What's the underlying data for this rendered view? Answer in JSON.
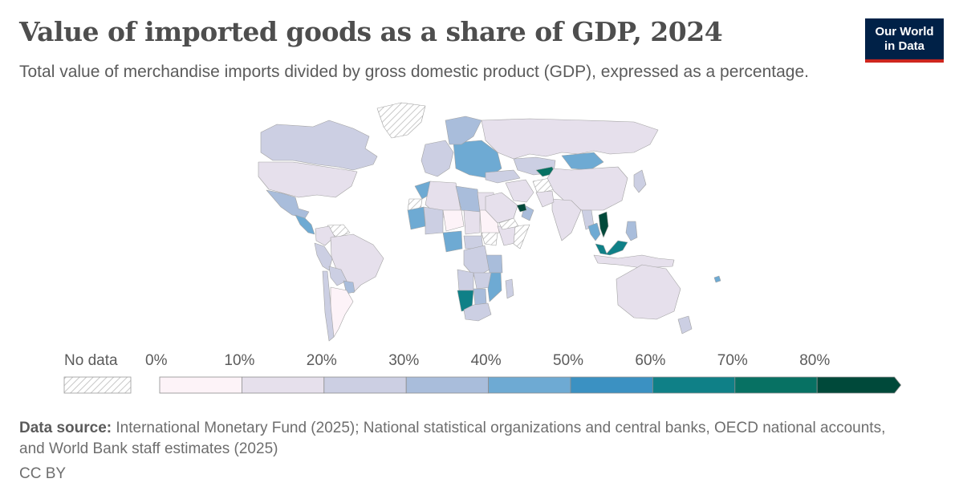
{
  "header": {
    "title": "Value of imported goods as a share of GDP, 2024",
    "subtitle": "Total value of merchandise imports divided by gross domestic product (GDP), expressed as a percentage."
  },
  "logo": {
    "line1": "Our World",
    "line2": "in Data"
  },
  "legend": {
    "no_data_label": "No data",
    "tick_labels": [
      "0%",
      "10%",
      "20%",
      "30%",
      "40%",
      "50%",
      "60%",
      "70%",
      "80%"
    ],
    "bins": [
      {
        "from": 0,
        "to": 10,
        "color": "#fdf3f8"
      },
      {
        "from": 10,
        "to": 20,
        "color": "#e6e0ec"
      },
      {
        "from": 20,
        "to": 30,
        "color": "#cccfe3"
      },
      {
        "from": 30,
        "to": 40,
        "color": "#a9bddb"
      },
      {
        "from": 40,
        "to": 50,
        "color": "#6eaad3"
      },
      {
        "from": 50,
        "to": 60,
        "color": "#3b91c2"
      },
      {
        "from": 60,
        "to": 70,
        "color": "#0f8087"
      },
      {
        "from": 70,
        "to": 80,
        "color": "#077163"
      },
      {
        "from": 80,
        "to": null,
        "color": "#00493a"
      }
    ]
  },
  "footer": {
    "source_label": "Data source:",
    "source_text": " International Monetary Fund (2025); National statistical organizations and central banks, OECD national accounts, and World Bank staff estimates (2025)",
    "license": "CC BY"
  },
  "chart_data": {
    "type": "choropleth",
    "title": "Value of imported goods as a share of GDP, 2024",
    "unit": "%",
    "year": 2024,
    "regions": [
      {
        "name": "Canada",
        "value": 25
      },
      {
        "name": "United States",
        "value": 12
      },
      {
        "name": "Greenland",
        "value": null
      },
      {
        "name": "Mexico",
        "value": 37
      },
      {
        "name": "Central America",
        "value": 45
      },
      {
        "name": "Venezuela",
        "value": null
      },
      {
        "name": "Colombia",
        "value": 18
      },
      {
        "name": "Brazil",
        "value": 14
      },
      {
        "name": "Peru",
        "value": 20
      },
      {
        "name": "Bolivia",
        "value": 22
      },
      {
        "name": "Paraguay",
        "value": 35
      },
      {
        "name": "Argentina",
        "value": 9
      },
      {
        "name": "Chile",
        "value": 22
      },
      {
        "name": "Western Sahara",
        "value": null
      },
      {
        "name": "Morocco",
        "value": 42
      },
      {
        "name": "Algeria",
        "value": 15
      },
      {
        "name": "Libya",
        "value": 31
      },
      {
        "name": "Egypt",
        "value": 18
      },
      {
        "name": "Mauritania",
        "value": 42
      },
      {
        "name": "Mali",
        "value": 22
      },
      {
        "name": "Niger",
        "value": 8
      },
      {
        "name": "Chad",
        "value": 12
      },
      {
        "name": "Sudan",
        "value": 8
      },
      {
        "name": "South Sudan",
        "value": null
      },
      {
        "name": "Ethiopia",
        "value": 12
      },
      {
        "name": "Somalia",
        "value": null
      },
      {
        "name": "Nigeria",
        "value": 45
      },
      {
        "name": "Central African Republic",
        "value": 22
      },
      {
        "name": "DR Congo",
        "value": 28
      },
      {
        "name": "Angola",
        "value": 22
      },
      {
        "name": "Tanzania",
        "value": 30
      },
      {
        "name": "Zambia",
        "value": 28
      },
      {
        "name": "Namibia",
        "value": 62
      },
      {
        "name": "Botswana",
        "value": 38
      },
      {
        "name": "South Africa",
        "value": 22
      },
      {
        "name": "Mozambique",
        "value": 48
      },
      {
        "name": "Madagascar",
        "value": 28
      },
      {
        "name": "Western Europe",
        "value": 28
      },
      {
        "name": "Eastern Europe",
        "value": 40
      },
      {
        "name": "Scandinavia",
        "value": 30
      },
      {
        "name": "Russia",
        "value": 14
      },
      {
        "name": "Turkey",
        "value": 28
      },
      {
        "name": "Iran",
        "value": 15
      },
      {
        "name": "Saudi Arabia",
        "value": 18
      },
      {
        "name": "Oman",
        "value": 32
      },
      {
        "name": "Yemen",
        "value": null
      },
      {
        "name": "United Arab Emirates",
        "value": 82
      },
      {
        "name": "Afghanistan",
        "value": null
      },
      {
        "name": "Kazakhstan",
        "value": 20
      },
      {
        "name": "Kyrgyzstan",
        "value": 70
      },
      {
        "name": "Mongolia",
        "value": 45
      },
      {
        "name": "China",
        "value": 14
      },
      {
        "name": "India",
        "value": 19
      },
      {
        "name": "Pakistan",
        "value": 18
      },
      {
        "name": "Myanmar",
        "value": 28
      },
      {
        "name": "Thailand",
        "value": 48
      },
      {
        "name": "Vietnam",
        "value": 82
      },
      {
        "name": "Malaysia",
        "value": 62
      },
      {
        "name": "Indonesia",
        "value": 17
      },
      {
        "name": "Philippines",
        "value": 30
      },
      {
        "name": "Japan",
        "value": 20
      },
      {
        "name": "Australia",
        "value": 14
      },
      {
        "name": "New Zealand",
        "value": 20
      },
      {
        "name": "Fiji",
        "value": 45
      }
    ]
  }
}
